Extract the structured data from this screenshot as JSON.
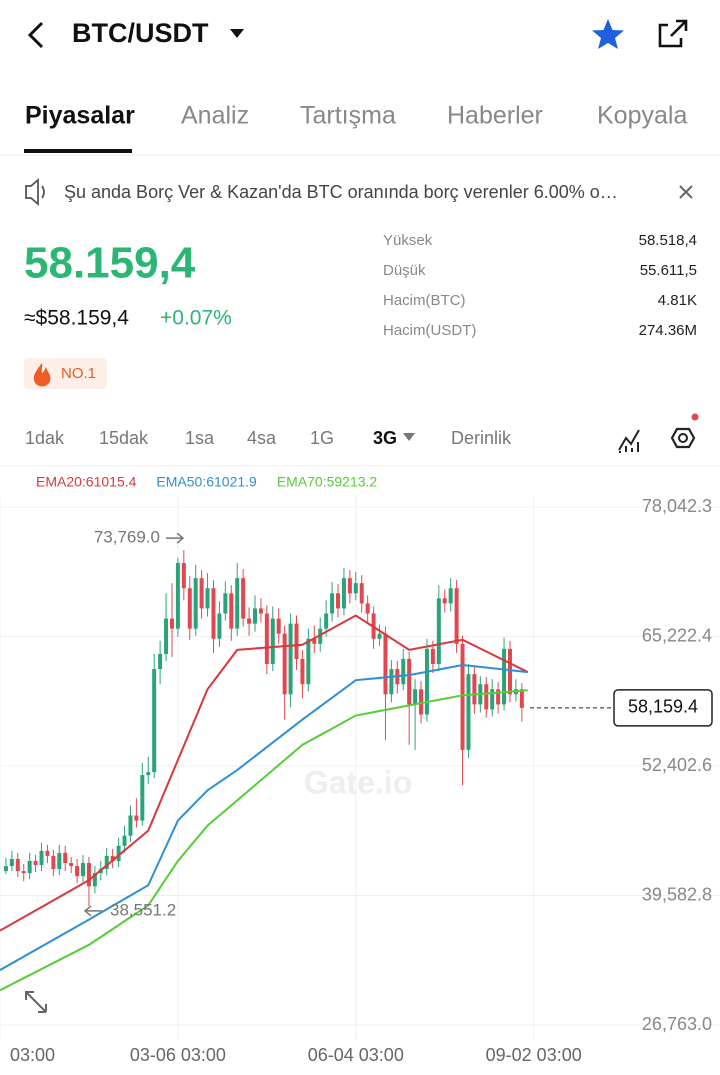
{
  "header": {
    "title": "BTC/USDT"
  },
  "tabs": [
    "Piyasalar",
    "Analiz",
    "Tartışma",
    "Haberler",
    "Kopyala"
  ],
  "notice": "Şu anda Borç Ver & Kazan'da BTC oranında borç verenler 6.00% o…",
  "price": {
    "last": "58.159,4",
    "usd": "≈$58.159,4",
    "change": "+0.07%"
  },
  "stats": [
    {
      "label": "Yüksek",
      "value": "58.518,4"
    },
    {
      "label": "Düşük",
      "value": "55.611,5"
    },
    {
      "label": "Hacim(BTC)",
      "value": "4.81K"
    },
    {
      "label": "Hacim(USDT)",
      "value": "274.36M"
    }
  ],
  "badge": "NO.1",
  "intervals": [
    "1dak",
    "15dak",
    "1sa",
    "4sa",
    "1G",
    "3G",
    "Derinlik"
  ],
  "chart_data": {
    "type": "candlestick",
    "watermark": "Gate.io",
    "ylim": [
      26763.0,
      78042.3
    ],
    "yticks": [
      {
        "value": 26763.0,
        "label": "26,763.0"
      },
      {
        "value": 39582.8,
        "label": "39,582.8"
      },
      {
        "value": 52402.6,
        "label": "52,402.6"
      },
      {
        "value": 65222.4,
        "label": "65,222.4"
      },
      {
        "value": 78042.3,
        "label": "78,042.3"
      }
    ],
    "xlim": [
      0,
      121
    ],
    "xticks": [
      {
        "value": 0,
        "label": "03:00"
      },
      {
        "value": 30,
        "label": "03-06 03:00"
      },
      {
        "value": 60,
        "label": "06-04 03:00"
      },
      {
        "value": 90,
        "label": "09-02 03:00"
      }
    ],
    "grid": true,
    "up_color": "#2ba37a",
    "down_color": "#e2474f",
    "high_label": {
      "value": 73769.0,
      "label": "73,769.0"
    },
    "low_label": {
      "value": 38551.2,
      "label": "38,551.2"
    },
    "last_label": {
      "value": 58159.4,
      "label": "58,159.4"
    },
    "candles": [
      [
        42000,
        43300,
        41700,
        42500
      ],
      [
        42500,
        44000,
        42000,
        43200
      ],
      [
        43200,
        43800,
        41400,
        42000
      ],
      [
        42000,
        42700,
        41000,
        41800
      ],
      [
        41800,
        43800,
        41200,
        43000
      ],
      [
        43000,
        43600,
        41900,
        42600
      ],
      [
        42600,
        44800,
        42000,
        44000
      ],
      [
        44000,
        44600,
        42800,
        43500
      ],
      [
        43500,
        44100,
        41500,
        42200
      ],
      [
        42200,
        44600,
        41600,
        43800
      ],
      [
        43800,
        44500,
        42000,
        42800
      ],
      [
        42800,
        43400,
        41800,
        42500
      ],
      [
        42500,
        43200,
        40800,
        41500
      ],
      [
        41500,
        43600,
        40900,
        42800
      ],
      [
        42800,
        43400,
        38551.2,
        40500
      ],
      [
        40500,
        42500,
        39800,
        41800
      ],
      [
        41800,
        43000,
        41100,
        42200
      ],
      [
        42200,
        44300,
        41600,
        43500
      ],
      [
        43500,
        44200,
        42300,
        43000
      ],
      [
        43000,
        45300,
        42400,
        44500
      ],
      [
        44500,
        46500,
        43800,
        45500
      ],
      [
        45500,
        48500,
        44900,
        47500
      ],
      [
        47500,
        49200,
        46300,
        47000
      ],
      [
        47000,
        52700,
        46500,
        51500
      ],
      [
        51500,
        53300,
        50600,
        51800
      ],
      [
        51800,
        63500,
        51200,
        62000
      ],
      [
        62000,
        64800,
        60500,
        63500
      ],
      [
        63500,
        69500,
        62800,
        67000
      ],
      [
        67000,
        70500,
        63200,
        66000
      ],
      [
        66000,
        73000,
        65200,
        72500
      ],
      [
        72500,
        73769.0,
        68800,
        70000
      ],
      [
        70000,
        71200,
        64900,
        66000
      ],
      [
        66000,
        72300,
        65300,
        71000
      ],
      [
        71000,
        71800,
        67000,
        68000
      ],
      [
        68000,
        71500,
        67200,
        70000
      ],
      [
        70000,
        70800,
        63600,
        65000
      ],
      [
        65000,
        68700,
        64200,
        67500
      ],
      [
        67500,
        70700,
        66800,
        69500
      ],
      [
        69500,
        70300,
        64800,
        66000
      ],
      [
        66000,
        72500,
        65300,
        71000
      ],
      [
        71000,
        71900,
        66200,
        67000
      ],
      [
        67000,
        68100,
        65300,
        66500
      ],
      [
        66500,
        69300,
        65700,
        68000
      ],
      [
        68000,
        69000,
        66600,
        67500
      ],
      [
        67500,
        68300,
        61500,
        62500
      ],
      [
        62500,
        68200,
        61800,
        67000
      ],
      [
        67000,
        68000,
        64500,
        65500
      ],
      [
        65500,
        66300,
        57000,
        59500
      ],
      [
        59500,
        67500,
        58200,
        66500
      ],
      [
        66500,
        67300,
        61900,
        63000
      ],
      [
        63000,
        63900,
        59100,
        60500
      ],
      [
        60500,
        66000,
        59800,
        65000
      ],
      [
        65000,
        66300,
        63600,
        64500
      ],
      [
        64500,
        67100,
        63700,
        66000
      ],
      [
        66000,
        68800,
        65200,
        67500
      ],
      [
        67500,
        70600,
        66700,
        69500
      ],
      [
        69500,
        70400,
        67100,
        68000
      ],
      [
        68000,
        72000,
        67300,
        71000
      ],
      [
        71000,
        71800,
        68500,
        69500
      ],
      [
        69500,
        71600,
        68800,
        70500
      ],
      [
        70500,
        71300,
        67600,
        68500
      ],
      [
        68500,
        69300,
        66500,
        67500
      ],
      [
        67500,
        68200,
        64000,
        65000
      ],
      [
        65000,
        66400,
        64300,
        65500
      ],
      [
        65500,
        66200,
        55000,
        59500
      ],
      [
        59500,
        62900,
        58700,
        62000
      ],
      [
        62000,
        62800,
        59600,
        60500
      ],
      [
        60500,
        64000,
        59900,
        63000
      ],
      [
        63000,
        63700,
        54500,
        58500
      ],
      [
        58500,
        61000,
        54000,
        60000
      ],
      [
        60000,
        60800,
        56600,
        57500
      ],
      [
        57500,
        65000,
        56800,
        64000
      ],
      [
        64000,
        64800,
        61600,
        62500
      ],
      [
        62500,
        70300,
        61800,
        69000
      ],
      [
        69000,
        69900,
        67600,
        68500
      ],
      [
        68500,
        71000,
        67700,
        70000
      ],
      [
        70000,
        70800,
        63600,
        64500
      ],
      [
        64500,
        65300,
        50500,
        54000
      ],
      [
        54000,
        62500,
        53200,
        61500
      ],
      [
        61500,
        62300,
        57600,
        58500
      ],
      [
        58500,
        61300,
        57700,
        60500
      ],
      [
        60500,
        61200,
        57200,
        58000
      ],
      [
        58000,
        61000,
        57300,
        60000
      ],
      [
        60000,
        60700,
        57600,
        58500
      ],
      [
        58500,
        65100,
        57900,
        64000
      ],
      [
        64000,
        64800,
        58700,
        59500
      ],
      [
        59500,
        61000,
        58800,
        60000
      ],
      [
        60000,
        60600,
        56800,
        58159.4
      ]
    ],
    "series": [
      {
        "name": "EMA20:61015.4",
        "color": "#d9363e",
        "x": [
          0,
          15,
          25,
          30,
          35,
          40,
          51,
          60,
          69,
          78,
          89
        ],
        "values": [
          36100,
          41100,
          46000,
          53000,
          60000,
          63900,
          64400,
          67300,
          63900,
          64900,
          61700
        ]
      },
      {
        "name": "EMA50:61021.9",
        "color": "#2f8fd0",
        "x": [
          0,
          15,
          25,
          30,
          35,
          40,
          51,
          60,
          69,
          78,
          89
        ],
        "values": [
          32200,
          37200,
          40600,
          47000,
          50000,
          52000,
          57000,
          60900,
          61400,
          62400,
          61700
        ]
      },
      {
        "name": "EMA70:59213.2",
        "color": "#55cc3a",
        "x": [
          0,
          15,
          25,
          30,
          35,
          40,
          51,
          60,
          69,
          78,
          89
        ],
        "values": [
          30200,
          34700,
          38600,
          43000,
          46500,
          49000,
          54500,
          57400,
          58400,
          59400,
          59900
        ]
      }
    ]
  }
}
